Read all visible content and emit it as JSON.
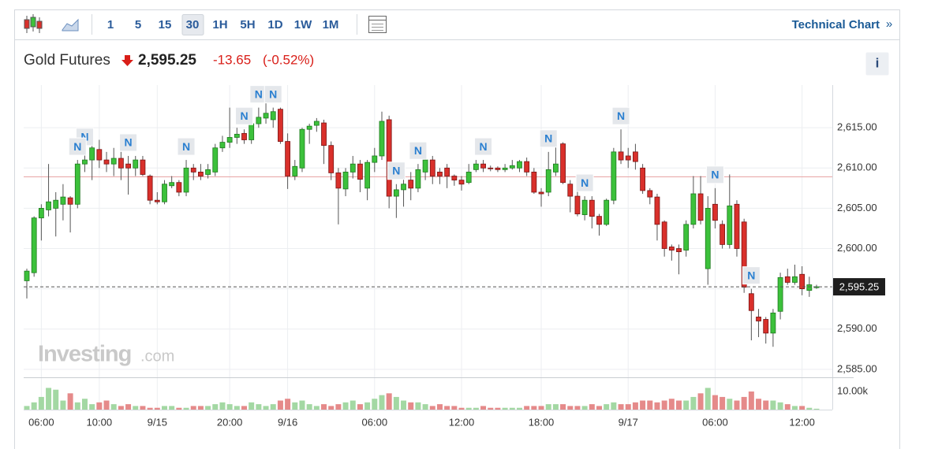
{
  "toolbar": {
    "intervals": [
      "1",
      "5",
      "15",
      "30",
      "1H",
      "5H",
      "1D",
      "1W",
      "1M"
    ],
    "active_interval_index": 3,
    "link": "Technical Chart",
    "link_arrow": "»"
  },
  "header": {
    "name": "Gold Futures",
    "price": "2,595.25",
    "change": "-13.65",
    "change_percent": "(-0.52%)",
    "info": "i"
  },
  "watermark": {
    "brand": "Investing",
    "suffix": ".com"
  },
  "chart_data": {
    "type": "candlestick",
    "categories": [
      null,
      null,
      "06:00",
      null,
      null,
      null,
      null,
      null,
      null,
      null,
      "10:00",
      null,
      null,
      null,
      null,
      null,
      null,
      null,
      "9/15",
      null,
      null,
      null,
      null,
      null,
      null,
      null,
      null,
      null,
      "20:00",
      null,
      null,
      null,
      null,
      null,
      null,
      null,
      "9/16",
      null,
      null,
      null,
      null,
      null,
      null,
      null,
      null,
      null,
      null,
      null,
      "06:00",
      null,
      null,
      null,
      null,
      null,
      null,
      null,
      null,
      null,
      null,
      null,
      "12:00",
      null,
      null,
      null,
      null,
      null,
      null,
      null,
      null,
      null,
      null,
      "18:00",
      null,
      null,
      null,
      null,
      null,
      null,
      null,
      null,
      null,
      null,
      null,
      "9/17",
      null,
      null,
      null,
      null,
      null,
      null,
      null,
      null,
      null,
      null,
      null,
      "06:00",
      null,
      null,
      null,
      null,
      null,
      null,
      null,
      null,
      null,
      null,
      null,
      "12:00",
      null,
      null
    ],
    "open": [
      2596,
      2597,
      2603.8,
      2604.8,
      2605,
      2605.5,
      2606.3,
      2605.5,
      2610.5,
      2611,
      2612.3,
      2611,
      2610.5,
      2611.2,
      2610.5,
      2610,
      2611,
      2609,
      2606,
      2605.8,
      2607.8,
      2608.2,
      2607,
      2610,
      2609.5,
      2609.2,
      2609.5,
      2612.5,
      2613.2,
      2613.8,
      2614.3,
      2613.5,
      2615.5,
      2616.2,
      2616,
      2617.3,
      2613.3,
      2609,
      2610,
      2614.8,
      2615.3,
      2615.6,
      2612.8,
      2609.4,
      2607.4,
      2609.5,
      2610.5,
      2607.5,
      2610.7,
      2611.5,
      2616,
      2606.5,
      2607.3,
      2608.5,
      2607.5,
      2609.5,
      2611,
      2609.5,
      2610,
      2609,
      2608.5,
      2608.2,
      2609.8,
      2610.5,
      2610,
      2610,
      2609.8,
      2610,
      2610,
      2610.8,
      2609.5,
      2607,
      2607,
      2609.5,
      2613,
      2608,
      2606.5,
      2604.2,
      2606,
      2604,
      2603,
      2606,
      2612,
      2611.5,
      2612,
      2610,
      2607.2,
      2606.4,
      2603.3,
      2600.2,
      2600,
      2599.8,
      2603,
      2606.8,
      2597.5,
      2605.5,
      2603,
      2600.5,
      2605.5,
      2603.3,
      2594.4,
      2591.5,
      2591.2,
      2589.5,
      2592.2,
      2596.5,
      2595.8,
      2596.8,
      2594.8,
      2595.25
    ],
    "high": [
      2597.5,
      2604,
      2605.5,
      2610.5,
      2607,
      2608,
      2606.5,
      2611,
      2612.2,
      2614,
      2613.5,
      2612,
      2612.5,
      2612,
      2611.5,
      2611.5,
      2611.5,
      2609.2,
      2607,
      2608.5,
      2609,
      2608.5,
      2611,
      2610.5,
      2610.5,
      2610.5,
      2613,
      2614,
      2617.5,
      2615,
      2614.8,
      2616,
      2617.5,
      2618.5,
      2617.5,
      2617.5,
      2614.3,
      2611,
      2615,
      2615.5,
      2616.2,
      2616,
      2613.3,
      2610,
      2610,
      2611.5,
      2611,
      2611,
      2612.5,
      2617,
      2616.5,
      2608,
      2609,
      2609.5,
      2610.5,
      2612,
      2611.5,
      2610,
      2610.5,
      2609.2,
      2609,
      2610.5,
      2611,
      2611,
      2610.3,
      2610.2,
      2610.5,
      2611,
      2611,
      2611.3,
      2610,
      2607.5,
      2612,
      2613,
      2613.2,
      2608.5,
      2607.5,
      2606.5,
      2606.5,
      2604.3,
      2606.2,
      2612.5,
      2614.8,
      2612.5,
      2613,
      2610.5,
      2607.5,
      2606.8,
      2603.5,
      2600.5,
      2600.5,
      2603.5,
      2609,
      2609,
      2606.5,
      2607.5,
      2603.5,
      2609.2,
      2606,
      2603.7,
      2595,
      2592.5,
      2591.5,
      2592.5,
      2597,
      2597.5,
      2598,
      2597.8,
      2596.5,
      2595.5
    ],
    "low": [
      2593.8,
      2596.5,
      2601,
      2604,
      2601.5,
      2603.5,
      2602,
      2605,
      2609.5,
      2608.5,
      2610,
      2609.5,
      2609,
      2608.5,
      2606.7,
      2609,
      2609,
      2605.5,
      2605.5,
      2605.5,
      2607.5,
      2606.5,
      2606.5,
      2608.5,
      2608.5,
      2608.7,
      2609,
      2612,
      2612.5,
      2613,
      2613,
      2613,
      2615,
      2615.5,
      2615,
      2613,
      2607.4,
      2608.5,
      2609.5,
      2613,
      2614.5,
      2610.5,
      2608.5,
      2603,
      2606.5,
      2608.7,
      2607,
      2606,
      2609.5,
      2611,
      2605,
      2603.8,
      2605.2,
      2606,
      2607,
      2608.5,
      2608,
      2608,
      2607.5,
      2607.8,
      2607.2,
      2608,
      2609.5,
      2609.5,
      2609.6,
      2609.5,
      2609.5,
      2609.8,
      2609.5,
      2609,
      2606.8,
      2605.2,
      2606.5,
      2609,
      2608,
      2604.5,
      2604,
      2603.5,
      2602.5,
      2601.6,
      2602.8,
      2605.5,
      2610.5,
      2610,
      2609.8,
      2606.8,
      2605.5,
      2601,
      2599,
      2598.5,
      2596.8,
      2599,
      2602.5,
      2603,
      2595.5,
      2602.5,
      2600,
      2600,
      2599,
      2594.5,
      2588.6,
      2589,
      2588.2,
      2587.8,
      2591.2,
      2595.5,
      2595.5,
      2594.2,
      2594,
      2595
    ],
    "close": [
      2597.2,
      2603.8,
      2605,
      2605.8,
      2606,
      2606.4,
      2605.5,
      2610.5,
      2611,
      2612.5,
      2611,
      2610.5,
      2611.2,
      2610,
      2610,
      2611,
      2609.2,
      2606,
      2605.8,
      2608,
      2608.2,
      2607,
      2610,
      2609.5,
      2609,
      2609.8,
      2612.5,
      2613.2,
      2613.8,
      2614.2,
      2613.5,
      2615.5,
      2616.3,
      2616.8,
      2617,
      2613.3,
      2609,
      2610.2,
      2614.8,
      2615.2,
      2615.8,
      2612.8,
      2609.4,
      2607.5,
      2609.5,
      2610.5,
      2608.6,
      2610.7,
      2611.5,
      2615.8,
      2606.5,
      2607.3,
      2608,
      2607.5,
      2609.8,
      2611,
      2609,
      2609,
      2609,
      2608.5,
      2608,
      2609.5,
      2610.5,
      2610,
      2609.9,
      2609.8,
      2610,
      2610.3,
      2610.8,
      2609.5,
      2607,
      2606.8,
      2609.8,
      2610.5,
      2608.2,
      2606.5,
      2604.3,
      2606,
      2604,
      2603,
      2606,
      2612,
      2611,
      2611,
      2610.8,
      2607.2,
      2606.4,
      2603,
      2600,
      2599.8,
      2599.6,
      2603,
      2606.8,
      2603.5,
      2605,
      2603.5,
      2600.5,
      2605.3,
      2600,
      2595.2,
      2592.3,
      2591,
      2589.5,
      2592,
      2596.4,
      2595.8,
      2596.5,
      2595,
      2595.5,
      2595.25
    ],
    "volume": [
      2000,
      4000,
      7000,
      12000,
      11000,
      5000,
      9000,
      4000,
      6000,
      3000,
      4000,
      5000,
      3000,
      2000,
      3000,
      2000,
      2000,
      1000,
      1000,
      2000,
      2000,
      1000,
      1000,
      2000,
      2000,
      2000,
      3000,
      4000,
      3000,
      2000,
      2000,
      4000,
      3000,
      2000,
      3000,
      5000,
      6000,
      4000,
      5000,
      3000,
      2000,
      3000,
      2000,
      3000,
      4000,
      5000,
      3000,
      4000,
      6000,
      8000,
      9000,
      7000,
      5000,
      4000,
      4000,
      3000,
      2000,
      3000,
      2000,
      2000,
      1000,
      1000,
      1000,
      2000,
      1000,
      1000,
      1000,
      1000,
      1000,
      2000,
      2000,
      2000,
      3000,
      3000,
      3000,
      2000,
      2000,
      2000,
      3000,
      2000,
      3000,
      4000,
      3000,
      3000,
      4000,
      5000,
      5000,
      4000,
      5000,
      6000,
      5000,
      5000,
      7000,
      9000,
      12000,
      8000,
      7000,
      6000,
      5000,
      7000,
      10000,
      6000,
      5000,
      5000,
      4000,
      3000,
      2000,
      2000,
      1000,
      500
    ],
    "up_color": "#3cc13b",
    "down_color": "#d9302b",
    "volume_up_color": "#a3d8a3",
    "volume_down_color": "#e58a8a",
    "ylim": [
      2584.4,
      2620.3
    ],
    "yticks": [
      {
        "value": 2585,
        "label": "2,585.00"
      },
      {
        "value": 2590,
        "label": "2,590.00"
      },
      {
        "value": 2595,
        "label": "2,595.00"
      },
      {
        "value": 2600,
        "label": "2,600.00"
      },
      {
        "value": 2605,
        "label": "2,605.00"
      },
      {
        "value": 2610,
        "label": "2,610.00"
      },
      {
        "value": 2615,
        "label": "2,615.00"
      }
    ],
    "volume_ylim": [
      0,
      17400
    ],
    "volume_yticks": [
      {
        "value": 10000,
        "label": "10.00k"
      }
    ],
    "last_price": {
      "value": 2595.25,
      "label": "2,595.25"
    },
    "previous_close": 2608.9,
    "grid": true,
    "news_markers": [
      {
        "index": 8,
        "label": "N"
      },
      {
        "index": 7,
        "label": "N"
      },
      {
        "index": 14,
        "label": "N"
      },
      {
        "index": 22,
        "label": "N"
      },
      {
        "index": 30,
        "label": "N"
      },
      {
        "index": 32,
        "label": "N"
      },
      {
        "index": 34,
        "label": "N"
      },
      {
        "index": 51,
        "label": "N"
      },
      {
        "index": 54,
        "label": "N"
      },
      {
        "index": 63,
        "label": "N"
      },
      {
        "index": 72,
        "label": "N"
      },
      {
        "index": 77,
        "label": "N"
      },
      {
        "index": 82,
        "label": "N"
      },
      {
        "index": 95,
        "label": "N"
      },
      {
        "index": 100,
        "label": "N"
      }
    ]
  }
}
